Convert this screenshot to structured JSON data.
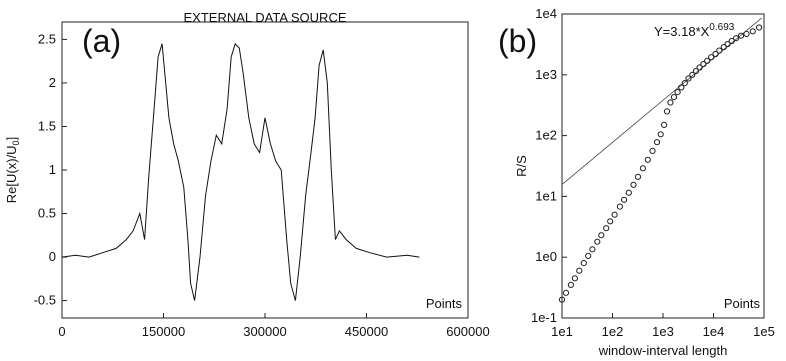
{
  "chart_data": [
    {
      "type": "line",
      "panel_label": "(a)",
      "title": "EXTERNAL DATA SOURCE",
      "xlabel": "Points",
      "ylabel": "Re[U(x)/U0]",
      "ylabel_parts": {
        "main": "Re[U(x)/U",
        "sub": "0",
        "end": "]"
      },
      "xlim": [
        0,
        600000
      ],
      "ylim": [
        -0.7,
        2.7
      ],
      "x_ticks": [
        "0",
        "150000",
        "300000",
        "450000",
        "600000"
      ],
      "x_tick_values": [
        0,
        150000,
        300000,
        450000,
        600000
      ],
      "y_ticks": [
        "-0.5",
        "0",
        "0.5",
        "1",
        "1.5",
        "2",
        "2.5"
      ],
      "y_tick_values": [
        -0.5,
        0,
        0.5,
        1,
        1.5,
        2,
        2.5
      ],
      "grid": false,
      "series": [
        {
          "x": [
            0,
            20000,
            40000,
            60000,
            80000,
            95000,
            105000,
            115000,
            122000,
            128000,
            135000,
            142000,
            148000,
            152000,
            158000,
            165000,
            172000,
            180000,
            186000,
            190000,
            196000,
            204000,
            212000,
            220000,
            228000,
            236000,
            244000,
            250000,
            256000,
            262000,
            268000,
            276000,
            284000,
            292000,
            300000,
            308000,
            316000,
            324000,
            332000,
            338000,
            345000,
            352000,
            360000,
            368000,
            374000,
            380000,
            386000,
            392000,
            398000,
            404000,
            410000,
            420000,
            435000,
            455000,
            480000,
            510000,
            528000
          ],
          "y": [
            0.0,
            0.02,
            0.0,
            0.05,
            0.1,
            0.2,
            0.3,
            0.5,
            0.2,
            0.9,
            1.6,
            2.3,
            2.45,
            2.1,
            1.6,
            1.3,
            1.1,
            0.8,
            0.2,
            -0.3,
            -0.5,
            0.0,
            0.7,
            1.1,
            1.4,
            1.3,
            1.7,
            2.3,
            2.45,
            2.4,
            2.1,
            1.6,
            1.3,
            1.2,
            1.6,
            1.3,
            1.1,
            1.0,
            0.2,
            -0.3,
            -0.5,
            0.0,
            0.7,
            1.2,
            1.6,
            2.2,
            2.38,
            2.0,
            1.0,
            0.2,
            0.3,
            0.2,
            0.1,
            0.05,
            0.0,
            0.02,
            0.0
          ]
        }
      ]
    },
    {
      "type": "scatter",
      "panel_label": "(b)",
      "xlabel": "window-interval length",
      "xlabel_inset": "Points",
      "ylabel": "R/S",
      "x_scale": "log",
      "y_scale": "log",
      "xlim": [
        10,
        100000
      ],
      "ylim": [
        0.1,
        10000
      ],
      "x_ticks": [
        "1e1",
        "1e2",
        "1e3",
        "1e4",
        "1e5"
      ],
      "x_tick_values": [
        10,
        100,
        1000,
        10000,
        100000
      ],
      "y_ticks": [
        "1e-1",
        "1e0",
        "1e1",
        "1e2",
        "1e3",
        "1e4"
      ],
      "y_tick_values": [
        0.1,
        1,
        10,
        100,
        1000,
        10000
      ],
      "annotation": {
        "text": "Y=3.18*X",
        "exponent": "0.693"
      },
      "fit_line": {
        "coefficient": 3.18,
        "exponent": 0.693
      },
      "grid": false,
      "series": [
        {
          "x": [
            10,
            12,
            15,
            18,
            22,
            27,
            33,
            40,
            50,
            60,
            75,
            90,
            110,
            140,
            170,
            210,
            260,
            320,
            400,
            500,
            620,
            760,
            900,
            1050,
            1200,
            1400,
            1650,
            1950,
            2300,
            2700,
            3200,
            3800,
            4500,
            5300,
            6300,
            7500,
            9000,
            11000,
            13000,
            16000,
            19000,
            23000,
            28000,
            35000,
            45000,
            60000,
            80000
          ],
          "y": [
            0.2,
            0.26,
            0.35,
            0.45,
            0.6,
            0.8,
            1.05,
            1.35,
            1.8,
            2.3,
            3.0,
            3.9,
            5.0,
            6.8,
            8.8,
            11.5,
            15.5,
            21,
            29,
            40,
            56,
            78,
            105,
            150,
            250,
            350,
            430,
            520,
            620,
            730,
            870,
            1000,
            1150,
            1320,
            1500,
            1700,
            1950,
            2200,
            2500,
            2850,
            3200,
            3600,
            4000,
            4400,
            4700,
            5200,
            6000
          ]
        }
      ]
    }
  ]
}
